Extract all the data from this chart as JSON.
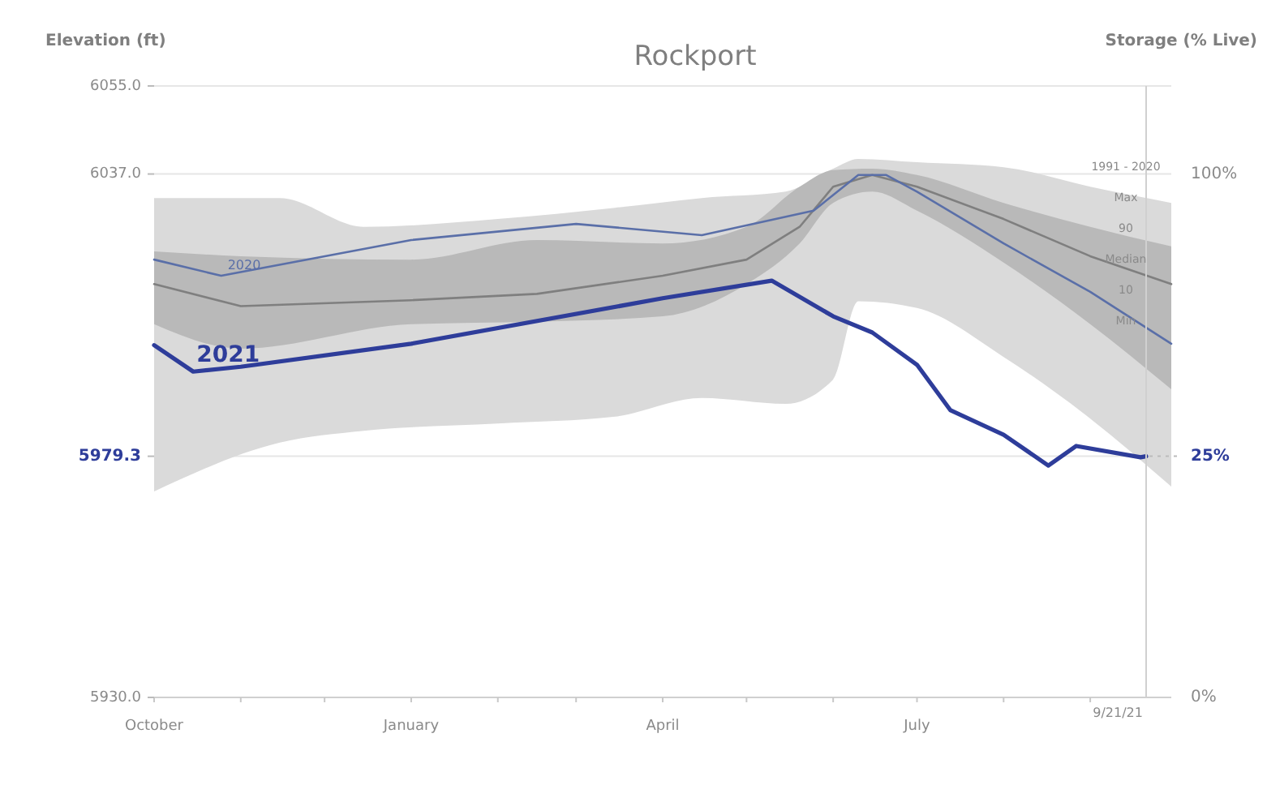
{
  "chart_data": {
    "type": "line",
    "title": "Rockport",
    "ylabel": "Elevation (ft)",
    "y2label": "Storage (% Live)",
    "xlim": [
      "2020-10-01",
      "2021-09-30"
    ],
    "xticks": [
      {
        "value": "2020-10-01",
        "label": "October"
      },
      {
        "value": "2020-11-01",
        "label": null
      },
      {
        "value": "2020-12-01",
        "label": null
      },
      {
        "value": "2021-01-01",
        "label": "January"
      },
      {
        "value": "2021-02-01",
        "label": null
      },
      {
        "value": "2021-03-01",
        "label": null
      },
      {
        "value": "2021-04-01",
        "label": "April"
      },
      {
        "value": "2021-05-01",
        "label": null
      },
      {
        "value": "2021-06-01",
        "label": null
      },
      {
        "value": "2021-07-01",
        "label": "July"
      },
      {
        "value": "2021-08-01",
        "label": null
      },
      {
        "value": "2021-09-01",
        "label": null
      }
    ],
    "ylim": [
      5930,
      6055
    ],
    "yticks": [
      {
        "value": 6055,
        "label": "6055.0"
      },
      {
        "value": 6037,
        "label": "6037.0"
      },
      {
        "value": 5979.3,
        "label": "5979.3"
      },
      {
        "value": 5930,
        "label": "5930.0"
      }
    ],
    "grid": "y",
    "series": [
      {
        "color": "#dadada",
        "x": [
          "2020-10-01",
          "2020-11-15",
          "2020-12-15",
          "2021-02-01",
          "2021-03-15",
          "2021-04-15",
          "2021-05-15",
          "2021-06-01",
          "2021-06-10",
          "2021-07-01",
          "2021-08-01",
          "2021-09-01",
          "2021-09-30"
        ],
        "values": [
          null,
          null,
          null,
          null,
          null,
          null,
          null,
          null,
          null,
          null,
          null,
          null,
          null
        ],
        "upper": [
          6032.1,
          6032.1,
          6026.2,
          6027.8,
          6030.1,
          6032.1,
          6033.4,
          6038.1,
          6040.1,
          6039.4,
          6038.4,
          6034.4,
          6031.1
        ],
        "lower": [
          5972.1,
          5982.1,
          5984.5,
          5986.0,
          5987.4,
          5991.2,
          5990.0,
          5995.0,
          6011.0,
          6009.6,
          5999.6,
          5987.0,
          5973.1
        ]
      },
      {
        "color": "#7f7f7f",
        "x": [
          "2020-10-01",
          "2020-11-01",
          "2021-01-01",
          "2021-02-15",
          "2021-04-01",
          "2021-05-01",
          "2021-05-20",
          "2021-06-01",
          "2021-06-15",
          "2021-07-01",
          "2021-08-01",
          "2021-09-01",
          "2021-09-30"
        ],
        "values": [
          6014.5,
          6010.0,
          6011.2,
          6012.5,
          6016.2,
          6019.5,
          6026.2,
          6034.4,
          6036.8,
          6034.4,
          6027.8,
          6020.2,
          6014.5
        ],
        "upper": [
          6021.2,
          6020.2,
          6019.5,
          6023.5,
          6022.8,
          6026.2,
          6034.4,
          6037.8,
          6038.1,
          6036.8,
          6031.1,
          6026.2,
          6022.2
        ],
        "lower": [
          6006.3,
          6001.3,
          6006.3,
          6006.8,
          6007.9,
          6014.5,
          6022.8,
          6031.1,
          6033.4,
          6029.5,
          6018.9,
          6006.3,
          5993.0
        ]
      },
      {
        "name": "2020",
        "color": "#5a6fa8",
        "x": [
          "2020-10-01",
          "2020-10-25",
          "2021-01-01",
          "2021-03-01",
          "2021-04-15",
          "2021-05-25",
          "2021-06-10",
          "2021-06-20",
          "2021-07-01",
          "2021-08-01",
          "2021-09-01",
          "2021-09-30"
        ],
        "values": [
          6019.5,
          6016.2,
          6023.5,
          6026.8,
          6024.5,
          6029.5,
          6036.8,
          6036.8,
          6033.4,
          6022.8,
          6012.9,
          6002.3
        ]
      },
      {
        "name": "2021",
        "color": "#2e3d9a",
        "x": [
          "2020-10-01",
          "2020-10-15",
          "2020-11-01",
          "2021-01-01",
          "2021-04-01",
          "2021-05-10",
          "2021-06-01",
          "2021-06-15",
          "2021-07-01",
          "2021-07-13",
          "2021-08-01",
          "2021-08-17",
          "2021-08-27",
          "2021-09-19",
          "2021-09-21"
        ],
        "values": [
          6002.0,
          5996.6,
          5997.6,
          6002.3,
          6011.6,
          6015.2,
          6007.9,
          6004.6,
          5998.0,
          5988.7,
          5983.7,
          5977.4,
          5981.4,
          5979.1,
          5979.3
        ]
      }
    ],
    "ref_lines": [
      {
        "axis": "x",
        "value": "2021-09-21",
        "label": "9/21/21",
        "color": "#d0d0d0"
      }
    ],
    "annotations": [
      "1991 - 2020",
      "Max",
      "90",
      "Median",
      "10",
      "Min",
      "100%",
      "0%",
      {
        "text": "25%",
        "x": "2021-09-21",
        "y": 5979.3
      }
    ]
  }
}
